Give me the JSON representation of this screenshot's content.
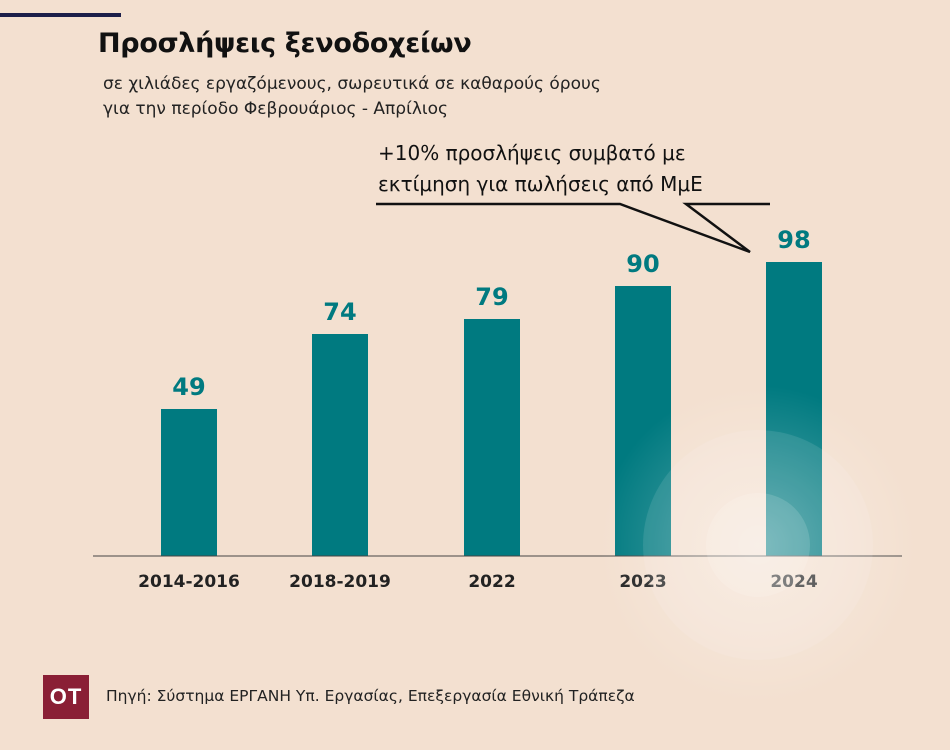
{
  "title": "Προσλήψεις ξενοδοχείων",
  "subtitle_line1": "σε χιλιάδες εργαζόμενους, σωρευτικά σε καθαρούς όρους",
  "subtitle_line2": "για την περίοδο Φεβρουάριος - Απρίλιος",
  "callout_line1": "+10% προσλήψεις συμβατό με",
  "callout_line2": "εκτίμηση για πωλήσεις από ΜμΕ",
  "logo_text": "ΟΤ",
  "source": "Πηγή: Σύστημα ΕΡΓΑΝΗ Υπ. Εργασίας, Επεξεργασία Εθνική Τράπεζα",
  "colors": {
    "background": "#f3e0d0",
    "bar": "#007a80",
    "value_label": "#007a80",
    "logo_bg": "#8a1f35",
    "rule": "#1c1f4a"
  },
  "chart_data": {
    "type": "bar",
    "categories": [
      "2014-2016",
      "2018-2019",
      "2022",
      "2023",
      "2024"
    ],
    "values": [
      49,
      74,
      79,
      90,
      98
    ],
    "data_labels": [
      "49",
      "74",
      "79",
      "90",
      "98"
    ],
    "title": "Προσλήψεις ξενοδοχείων",
    "subtitle": "σε χιλιάδες εργαζόμενους, σωρευτικά σε καθαρούς όρους",
    "xlabel": "",
    "ylabel": "",
    "ylim": [
      0,
      100
    ],
    "grid": false,
    "legend": "none",
    "annotation": "+10% προσλήψεις συμβατό με εκτίμηση για πωλήσεις από ΜμΕ"
  }
}
